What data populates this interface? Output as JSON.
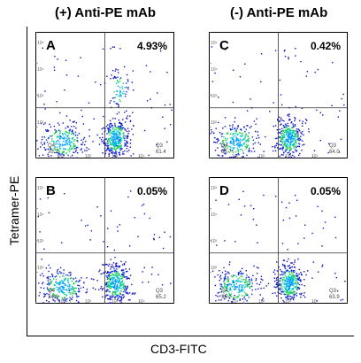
{
  "column_titles": [
    "(+) Anti-PE mAb",
    "(-) Anti-PE mAb"
  ],
  "ylabel": "Tetramer-PE",
  "xlabel": "CD3-FITC",
  "tick_labels": [
    "10¹",
    "10²",
    "10³",
    "10⁴",
    "10⁵"
  ],
  "chart_data": [
    {
      "type": "scatter",
      "panel": "A",
      "title": "(+) Anti-PE mAb",
      "upper_right_pct": "4.93%",
      "quadrants": {
        "Q4": {
          "name": "Q4",
          "value": "35.2"
        },
        "Q3": {
          "name": "Q3",
          "value": "61.4"
        }
      },
      "xlabel": "CD3-FITC",
      "ylabel": "Tetramer-PE",
      "x_scale": "log",
      "y_scale": "log",
      "xlim": [
        10,
        100000
      ],
      "ylim": [
        10,
        100000
      ],
      "quadrant_gate": {
        "x": 1000,
        "y": 400
      }
    },
    {
      "type": "scatter",
      "panel": "C",
      "title": "(-) Anti-PE mAb",
      "upper_right_pct": "0.42%",
      "quadrants": {
        "Q4": {
          "name": "Q4",
          "value": "35.7"
        },
        "Q3": {
          "name": "Q3",
          "value": "64.0"
        }
      },
      "xlabel": "CD3-FITC",
      "ylabel": "Tetramer-PE",
      "x_scale": "log",
      "y_scale": "log",
      "xlim": [
        10,
        100000
      ],
      "ylim": [
        10,
        100000
      ],
      "quadrant_gate": {
        "x": 1000,
        "y": 400
      }
    },
    {
      "type": "scatter",
      "panel": "B",
      "title": "(+) Anti-PE mAb",
      "upper_right_pct": "0.05%",
      "quadrants": {
        "Q4": {
          "name": "Q4",
          "value": "34.6"
        },
        "Q3": {
          "name": "Q3",
          "value": "65.2"
        }
      },
      "xlabel": "CD3-FITC",
      "ylabel": "Tetramer-PE",
      "x_scale": "log",
      "y_scale": "log",
      "xlim": [
        10,
        100000
      ],
      "ylim": [
        10,
        100000
      ],
      "quadrant_gate": {
        "x": 1000,
        "y": 400
      }
    },
    {
      "type": "scatter",
      "panel": "D",
      "title": "(-) Anti-PE mAb",
      "upper_right_pct": "0.05%",
      "quadrants": {
        "Q4": {
          "name": "Q4",
          "value": "36.0"
        },
        "Q3": {
          "name": "Q3",
          "value": "63.9"
        }
      },
      "xlabel": "CD3-FITC",
      "ylabel": "Tetramer-PE",
      "x_scale": "log",
      "y_scale": "log",
      "xlim": [
        10,
        100000
      ],
      "ylim": [
        10,
        100000
      ],
      "quadrant_gate": {
        "x": 1000,
        "y": 400
      }
    }
  ]
}
